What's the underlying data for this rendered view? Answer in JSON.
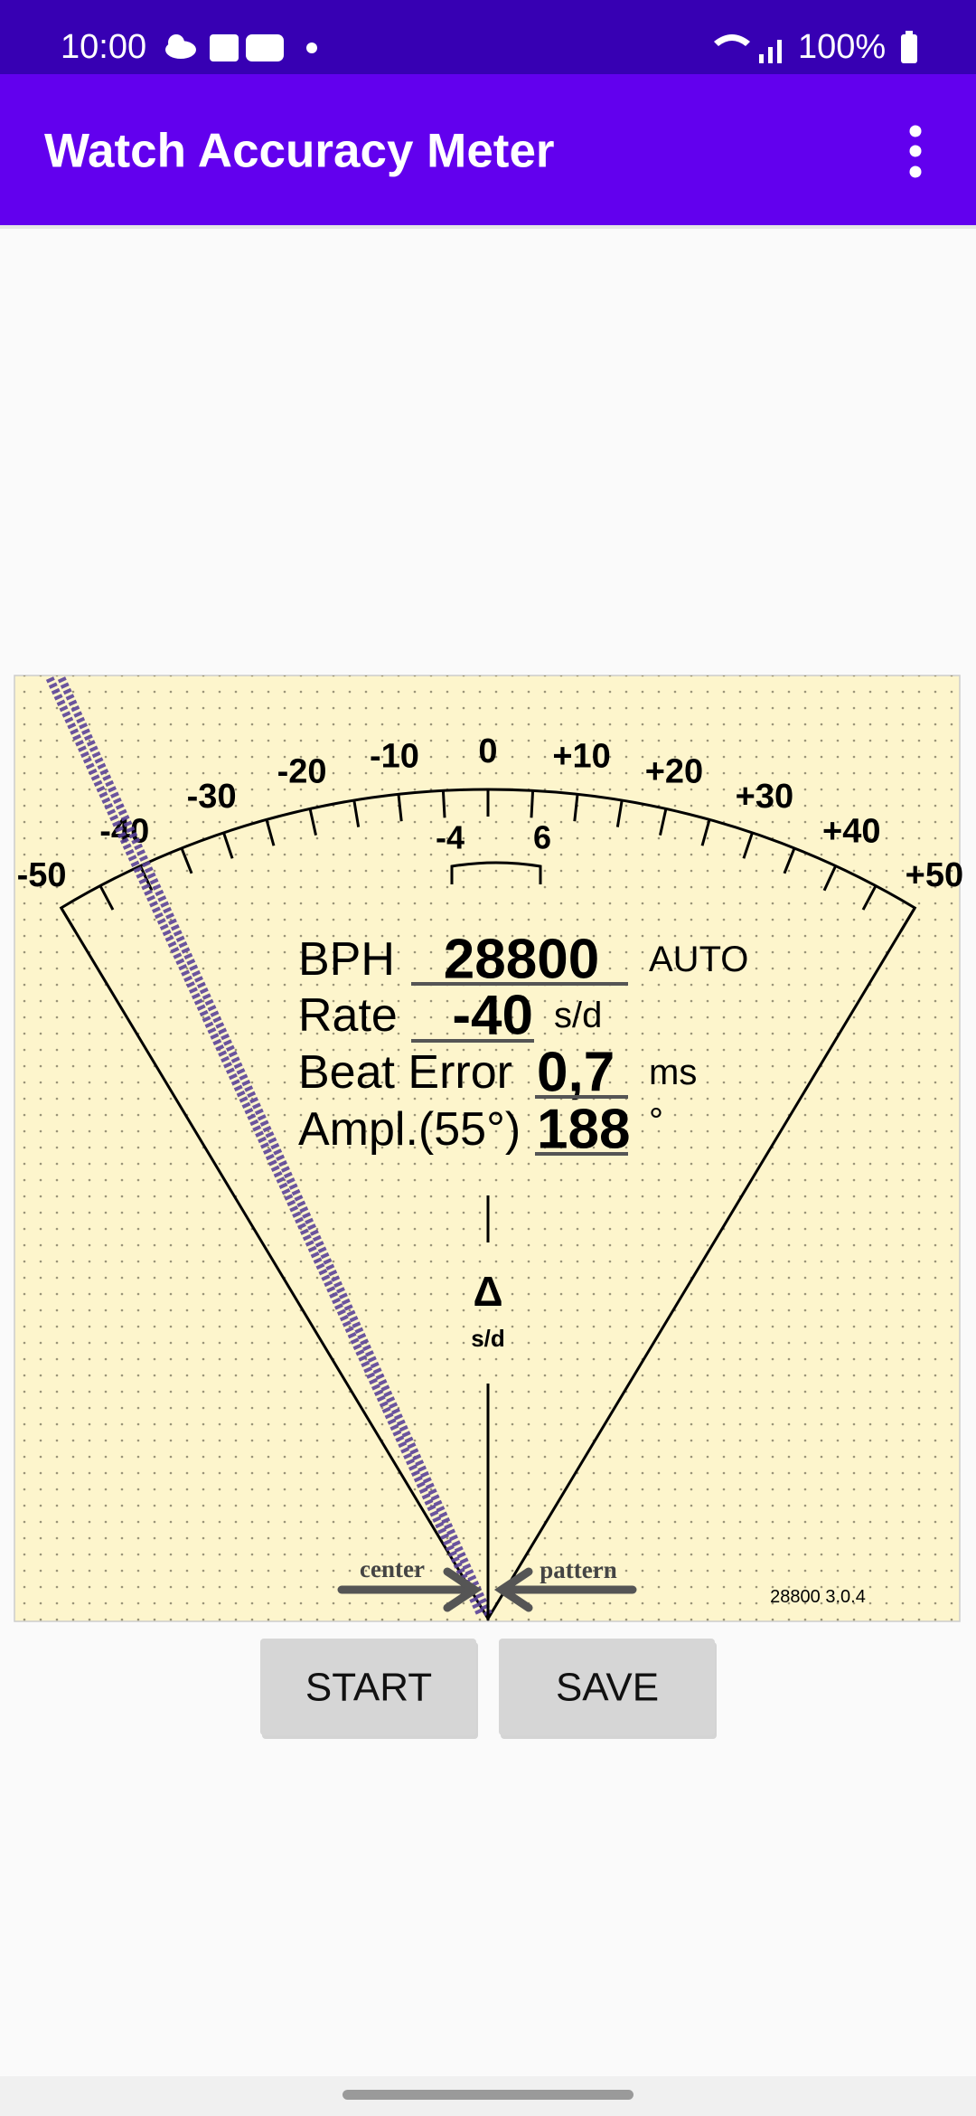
{
  "status_bar": {
    "time": "10:00",
    "battery": "100%"
  },
  "app_bar": {
    "title": "Watch Accuracy Meter"
  },
  "meter": {
    "scale_labels": [
      "-50",
      "-40",
      "-30",
      "-20",
      "-10",
      "0",
      "+10",
      "+20",
      "+30",
      "+40",
      "+50"
    ],
    "window_labels": [
      "-4",
      "6"
    ],
    "readings": [
      {
        "label": "BPH",
        "value": "28800",
        "unit": "AUTO"
      },
      {
        "label": "Rate",
        "value": "-40",
        "unit": "s/d"
      },
      {
        "label": "Beat Error",
        "value": "0,7",
        "unit": "ms"
      },
      {
        "label": "Ampl.(55°)",
        "value": "188",
        "unit": "°"
      }
    ],
    "delta_symbol": "Δ",
    "delta_unit": "s/d",
    "center_label": "center",
    "pattern_label": "pattern",
    "version": "28800 3.0.4"
  },
  "buttons": [
    "START",
    "SAVE"
  ]
}
